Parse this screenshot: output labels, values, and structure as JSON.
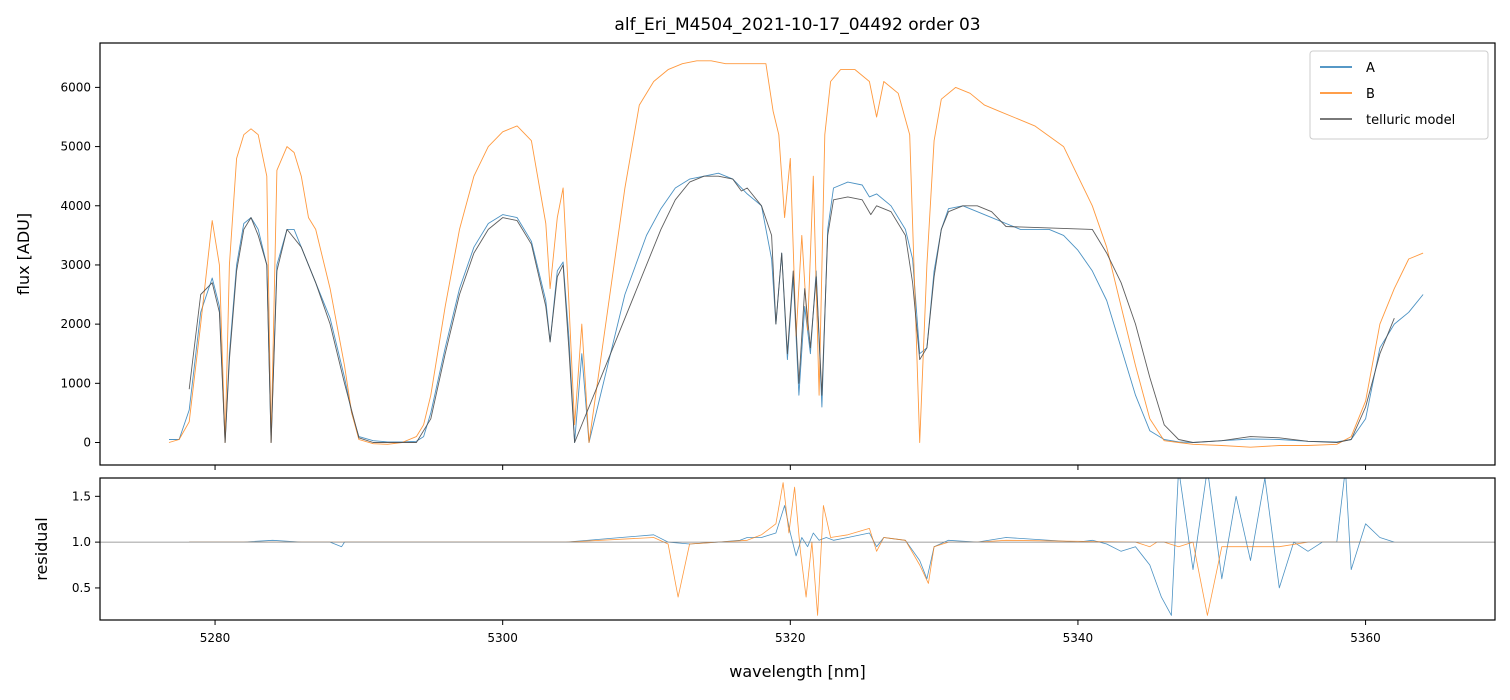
{
  "chart_data": [
    {
      "type": "line",
      "title": "alf_Eri_M4504_2021-10-17_04492  order 03",
      "xlabel": "",
      "ylabel": "flux [ADU]",
      "xlim": [
        5272,
        5369
      ],
      "ylim": [
        -380,
        6750
      ],
      "yticks": [
        0,
        1000,
        2000,
        3000,
        4000,
        5000,
        6000
      ],
      "xticks": [
        5280,
        5300,
        5320,
        5340,
        5360
      ],
      "xtick_labels_shown": false,
      "grid": false,
      "legend": "top-right",
      "colors": {
        "A": "#1f77b4",
        "B": "#ff7f0e",
        "telluric model": "#4d4d4d"
      },
      "series": [
        {
          "name": "A",
          "x": [
            5276.8,
            5277.5,
            5278.2,
            5279.0,
            5279.8,
            5280.3,
            5280.7,
            5281.0,
            5281.5,
            5282.0,
            5282.5,
            5283.0,
            5283.6,
            5283.9,
            5284.3,
            5285.0,
            5285.5,
            5286.0,
            5286.5,
            5287.0,
            5288.0,
            5289.0,
            5289.5,
            5290.0,
            5291.0,
            5292.0,
            5293.0,
            5294.0,
            5294.5,
            5295.0,
            5296.0,
            5297.0,
            5298.0,
            5299.0,
            5300.0,
            5301.0,
            5302.0,
            5303.0,
            5303.3,
            5303.8,
            5304.2,
            5304.6,
            5305.0,
            5305.5,
            5306.0,
            5308.5,
            5310.0,
            5311.0,
            5312.0,
            5313.0,
            5314.0,
            5315.0,
            5316.0,
            5317.0,
            5318.0,
            5318.7,
            5319.0,
            5319.4,
            5319.8,
            5320.2,
            5320.6,
            5321.0,
            5321.4,
            5321.8,
            5322.2,
            5322.6,
            5323.0,
            5324.0,
            5325.0,
            5325.5,
            5326.0,
            5327.0,
            5328.0,
            5328.5,
            5329.0,
            5329.5,
            5330.0,
            5330.5,
            5331.0,
            5332.0,
            5333.0,
            5334.0,
            5335.0,
            5336.0,
            5337.0,
            5338.0,
            5339.0,
            5340.0,
            5341.0,
            5342.0,
            5343.0,
            5344.0,
            5345.0,
            5346.0,
            5347.0,
            5348.0,
            5350.0,
            5352.0,
            5354.0,
            5356.0,
            5358.0,
            5359.0,
            5360.0,
            5361.0,
            5362.0,
            5363.0,
            5364.0
          ],
          "y": [
            50,
            50,
            550,
            2200,
            2780,
            2300,
            0,
            1500,
            3000,
            3700,
            3800,
            3600,
            3000,
            0,
            3000,
            3600,
            3600,
            3300,
            3000,
            2700,
            2100,
            1100,
            500,
            100,
            30,
            10,
            10,
            20,
            100,
            500,
            1600,
            2600,
            3300,
            3700,
            3850,
            3800,
            3400,
            2400,
            1700,
            2900,
            3050,
            1800,
            0,
            1500,
            0,
            2500,
            3500,
            3950,
            4300,
            4450,
            4500,
            4550,
            4450,
            4200,
            4000,
            3100,
            2000,
            3200,
            1400,
            2800,
            800,
            2300,
            1500,
            2900,
            600,
            3600,
            4300,
            4400,
            4350,
            4150,
            4200,
            4000,
            3600,
            3100,
            1500,
            1600,
            2900,
            3600,
            3950,
            4000,
            3900,
            3800,
            3700,
            3600,
            3600,
            3600,
            3500,
            3250,
            2900,
            2400,
            1600,
            800,
            200,
            50,
            10,
            0,
            30,
            60,
            50,
            20,
            10,
            50,
            400,
            1600,
            2000,
            2200,
            2500
          ]
        },
        {
          "name": "B",
          "x": [
            5276.8,
            5277.5,
            5278.2,
            5279.0,
            5279.8,
            5280.3,
            5280.7,
            5281.0,
            5281.5,
            5282.0,
            5282.5,
            5283.0,
            5283.6,
            5283.9,
            5284.3,
            5285.0,
            5285.5,
            5286.0,
            5286.5,
            5287.0,
            5288.0,
            5289.0,
            5289.5,
            5290.0,
            5291.0,
            5292.0,
            5293.0,
            5294.0,
            5294.5,
            5295.0,
            5296.0,
            5297.0,
            5298.0,
            5299.0,
            5300.0,
            5301.0,
            5302.0,
            5303.0,
            5303.3,
            5303.8,
            5304.2,
            5304.6,
            5305.0,
            5305.5,
            5306.0,
            5308.5,
            5309.5,
            5310.5,
            5311.5,
            5312.5,
            5313.5,
            5314.5,
            5315.5,
            5316.5,
            5317.5,
            5318.3,
            5318.8,
            5319.2,
            5319.6,
            5320.0,
            5320.4,
            5320.8,
            5321.2,
            5321.6,
            5322.0,
            5322.4,
            5322.8,
            5323.5,
            5324.5,
            5325.5,
            5326.0,
            5326.5,
            5327.5,
            5328.3,
            5329.0,
            5329.5,
            5330.0,
            5330.5,
            5331.5,
            5332.5,
            5333.5,
            5334.5,
            5335.5,
            5336.5,
            5337.0,
            5339.0,
            5340.0,
            5341.0,
            5342.0,
            5343.0,
            5344.0,
            5345.0,
            5346.0,
            5347.0,
            5348.0,
            5350.0,
            5352.0,
            5354.0,
            5356.0,
            5358.0,
            5359.0,
            5360.0,
            5361.0,
            5362.0,
            5363.0,
            5364.0
          ],
          "y": [
            0,
            50,
            350,
            2000,
            3750,
            3000,
            0,
            3000,
            4800,
            5200,
            5300,
            5200,
            4500,
            0,
            4600,
            5000,
            4900,
            4500,
            3800,
            3600,
            2600,
            1300,
            500,
            50,
            -20,
            -30,
            0,
            100,
            300,
            800,
            2300,
            3600,
            4500,
            5000,
            5250,
            5350,
            5100,
            3700,
            2600,
            3800,
            4300,
            2400,
            300,
            2000,
            0,
            4300,
            5700,
            6100,
            6300,
            6400,
            6450,
            6450,
            6400,
            6400,
            6400,
            6400,
            5600,
            5200,
            3800,
            4800,
            1800,
            3500,
            1900,
            4500,
            800,
            5200,
            6100,
            6300,
            6300,
            6100,
            5500,
            6100,
            5900,
            5200,
            0,
            3000,
            5100,
            5800,
            6000,
            5900,
            5700,
            5600,
            5500,
            5400,
            5350,
            5000,
            4500,
            4000,
            3300,
            2300,
            1300,
            400,
            30,
            0,
            -30,
            -50,
            -80,
            -50,
            -50,
            -30,
            100,
            700,
            2000,
            2600,
            3100,
            3200
          ]
        },
        {
          "name": "telluric model",
          "x": [
            5278.2,
            5279.0,
            5279.8,
            5280.3,
            5280.7,
            5281.0,
            5281.5,
            5282.0,
            5282.5,
            5283.0,
            5283.6,
            5283.9,
            5284.3,
            5285.0,
            5286.0,
            5287.0,
            5288.0,
            5289.0,
            5290.0,
            5291.0,
            5292.0,
            5293.0,
            5294.0,
            5295.0,
            5296.0,
            5297.0,
            5298.0,
            5299.0,
            5300.0,
            5301.0,
            5302.0,
            5303.0,
            5303.3,
            5303.8,
            5304.2,
            5304.6,
            5305.0,
            5311.0,
            5312.0,
            5313.0,
            5314.0,
            5315.0,
            5316.0,
            5316.6,
            5317.0,
            5318.0,
            5318.7,
            5319.0,
            5319.4,
            5319.8,
            5320.2,
            5320.6,
            5321.0,
            5321.4,
            5321.8,
            5322.2,
            5322.6,
            5323.0,
            5324.0,
            5325.0,
            5325.6,
            5326.0,
            5327.0,
            5328.0,
            5328.5,
            5329.0,
            5329.5,
            5330.0,
            5330.5,
            5331.0,
            5332.0,
            5333.0,
            5334.0,
            5335.0,
            5341.0,
            5342.0,
            5343.0,
            5344.0,
            5345.0,
            5346.0,
            5347.0,
            5348.0,
            5350.0,
            5352.0,
            5354.0,
            5356.0,
            5358.0,
            5359.0,
            5360.0,
            5361.0,
            5362.0
          ],
          "y": [
            900,
            2500,
            2700,
            2200,
            0,
            1400,
            2900,
            3600,
            3800,
            3500,
            3000,
            0,
            2900,
            3600,
            3300,
            2700,
            2000,
            1000,
            80,
            0,
            0,
            0,
            0,
            400,
            1500,
            2500,
            3200,
            3600,
            3800,
            3750,
            3350,
            2300,
            1700,
            2800,
            3000,
            1600,
            0,
            3600,
            4100,
            4400,
            4500,
            4500,
            4450,
            4250,
            4300,
            4000,
            3500,
            2000,
            3200,
            1500,
            2900,
            1000,
            2600,
            1600,
            2800,
            800,
            3500,
            4100,
            4150,
            4100,
            3850,
            4000,
            3900,
            3500,
            2700,
            1400,
            1600,
            2800,
            3600,
            3900,
            4000,
            4000,
            3900,
            3650,
            3600,
            3200,
            2700,
            2000,
            1100,
            300,
            50,
            0,
            30,
            100,
            80,
            20,
            0,
            50,
            600,
            1500,
            2100
          ]
        }
      ]
    },
    {
      "type": "line",
      "title": "",
      "xlabel": "wavelength [nm]",
      "ylabel": "residual",
      "xlim": [
        5272,
        5369
      ],
      "ylim": [
        0.15,
        1.7
      ],
      "yticks": [
        0.5,
        1.0,
        1.5
      ],
      "ytick_labels": [
        "0.5",
        "1.0",
        "1.5"
      ],
      "xticks": [
        5280,
        5300,
        5320,
        5340,
        5360
      ],
      "reference_line": 1.0,
      "grid": false,
      "series": [
        {
          "name": "A",
          "x": [
            5278.2,
            5280.0,
            5282.0,
            5284.0,
            5286.0,
            5288.0,
            5288.8,
            5289.0,
            5290.0,
            5292.0,
            5294.0,
            5296.0,
            5298.0,
            5300.0,
            5302.0,
            5304.4,
            5310.5,
            5311.5,
            5313.0,
            5315.0,
            5316.5,
            5317.0,
            5318.0,
            5319.0,
            5319.6,
            5320.0,
            5320.4,
            5320.8,
            5321.2,
            5321.6,
            5322.0,
            5322.5,
            5323.0,
            5324.0,
            5325.5,
            5326.0,
            5326.5,
            5328.0,
            5329.0,
            5329.5,
            5330.0,
            5331.0,
            5333.0,
            5335.0,
            5340.0,
            5341.0,
            5342.0,
            5343.0,
            5344.0,
            5345.0,
            5345.8,
            5346.5,
            5347.0,
            5348.0,
            5349.0,
            5350.0,
            5351.0,
            5352.0,
            5353.0,
            5354.0,
            5355.0,
            5356.0,
            5357.0,
            5358.0,
            5358.6,
            5359.0,
            5360.0,
            5361.0,
            5362.0
          ],
          "y": [
            1.0,
            1.0,
            1.0,
            1.02,
            1.0,
            1.0,
            0.95,
            1.0,
            1.0,
            1.0,
            1.0,
            1.0,
            1.0,
            1.0,
            1.0,
            1.0,
            1.08,
            1.0,
            0.98,
            1.0,
            1.02,
            1.05,
            1.05,
            1.1,
            1.4,
            1.1,
            0.85,
            1.05,
            0.95,
            1.1,
            1.02,
            1.05,
            1.02,
            1.05,
            1.1,
            0.95,
            1.05,
            1.02,
            0.8,
            0.6,
            0.95,
            1.02,
            1.0,
            1.05,
            1.0,
            1.02,
            0.98,
            0.9,
            0.95,
            0.75,
            0.4,
            0.2,
            1.8,
            0.7,
            1.8,
            0.6,
            1.5,
            0.8,
            1.7,
            0.5,
            1.0,
            0.9,
            1.0,
            1.0,
            1.8,
            0.7,
            1.2,
            1.05,
            1.0
          ]
        },
        {
          "name": "B",
          "x": [
            5278.2,
            5280.0,
            5282.0,
            5284.0,
            5286.0,
            5288.0,
            5290.0,
            5292.0,
            5294.0,
            5296.0,
            5298.0,
            5300.0,
            5302.0,
            5304.4,
            5310.5,
            5311.5,
            5312.2,
            5313.0,
            5315.0,
            5317.0,
            5318.0,
            5319.0,
            5319.5,
            5319.9,
            5320.3,
            5320.7,
            5321.1,
            5321.5,
            5321.9,
            5322.3,
            5322.8,
            5324.0,
            5325.5,
            5326.0,
            5326.5,
            5328.0,
            5329.0,
            5329.6,
            5330.0,
            5331.0,
            5333.0,
            5335.0,
            5344.0,
            5345.0,
            5345.5,
            5346.0,
            5347.0,
            5348.0,
            5349.0,
            5350.0,
            5352.0,
            5354.0,
            5356.0,
            5358.0,
            5360.0
          ],
          "y": [
            1.0,
            1.0,
            1.0,
            1.0,
            1.0,
            1.0,
            1.0,
            1.0,
            1.0,
            1.0,
            1.0,
            1.0,
            1.0,
            1.0,
            1.05,
            0.98,
            0.4,
            0.98,
            1.0,
            1.02,
            1.08,
            1.2,
            1.65,
            1.1,
            1.6,
            0.9,
            0.4,
            1.0,
            0.2,
            1.4,
            1.05,
            1.08,
            1.15,
            0.9,
            1.05,
            1.02,
            0.75,
            0.55,
            0.95,
            1.0,
            1.0,
            1.02,
            1.0,
            0.95,
            1.0,
            1.0,
            0.95,
            1.0,
            0.2,
            0.95,
            0.95,
            0.95,
            1.0,
            1.0,
            1.0
          ]
        }
      ]
    }
  ]
}
